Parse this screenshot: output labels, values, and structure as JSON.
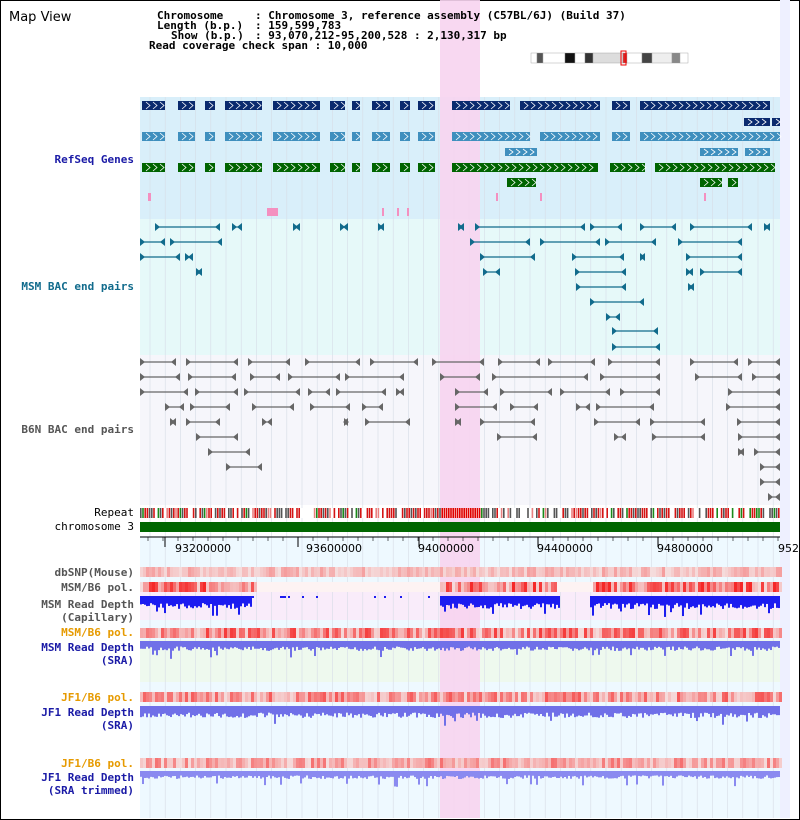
{
  "window": {
    "title": "Map View"
  },
  "header": {
    "chromosome_label": "Chromosome",
    "chromosome_value": ": Chromosome 3, reference assembly (C57BL/6J) (Build 37)",
    "length_label": "Length (b.p.)",
    "length_value": ": 159,599,783",
    "show_label": "Show (b.p.)",
    "show_value": ": 93,070,212-95,200,528 : 2,130,317 bp",
    "coverage_text": "Read coverage check span : 10,000"
  },
  "tracks": {
    "refseq": "RefSeq Genes",
    "msm_bac": "MSM BAC end pairs",
    "b6n_bac": "B6N BAC end pairs",
    "repeat": "Repeat",
    "chromosome": "chromosome 3",
    "dbsnp": "dbSNP(Mouse)",
    "msm_b6_pol_cap": "MSM/B6 pol.",
    "msm_depth_cap_1": "MSM Read Depth",
    "msm_depth_cap_2": "(Capillary)",
    "msm_b6_pol_sra": "MSM/B6 pol.",
    "msm_depth_sra_1": "MSM Read Depth",
    "msm_depth_sra_2": "(SRA)",
    "jf1_b6_pol": "JF1/B6 pol.",
    "jf1_depth_1": "JF1 Read Depth",
    "jf1_depth_2": "(SRA)",
    "jf1_b6_pol_trim": "JF1/B6 pol.",
    "jf1_trim_1": "JF1 Read Depth",
    "jf1_trim_2": "(SRA trimmed)"
  },
  "axis": {
    "ticks": [
      "93200000",
      "93600000",
      "94000000",
      "94400000",
      "94800000",
      "952"
    ]
  },
  "colors": {
    "refseq_bg": "#d9effa",
    "bac_bg": "#e6f9f9",
    "highlight": "#f7d4f0",
    "navy": "#0a2a6e",
    "steel": "#3f8fbe",
    "green": "#006400",
    "pink": "#f490c0",
    "depth_capillary": "#1c1cf0",
    "depth_sra": "#7070e8",
    "chromosome_bar": "#006600"
  }
}
